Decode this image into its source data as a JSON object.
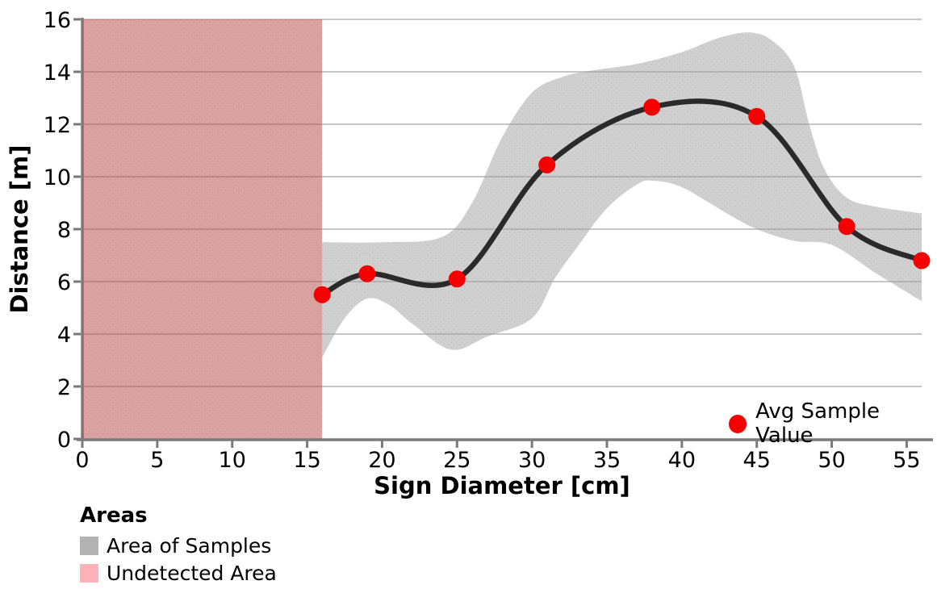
{
  "chart_data": {
    "type": "line",
    "xlabel": "Sign Diameter [cm]",
    "ylabel": "Distance [m]",
    "xlim": [
      0,
      56
    ],
    "ylim": [
      0,
      16
    ],
    "xticks": [
      0,
      5,
      10,
      15,
      20,
      25,
      30,
      35,
      40,
      45,
      50,
      55
    ],
    "yticks": [
      0,
      2,
      4,
      6,
      8,
      10,
      12,
      14,
      16
    ],
    "grid": "horizontal",
    "series": [
      {
        "name": "Avg Sample Value",
        "x": [
          16,
          19,
          25,
          31,
          38,
          45,
          51,
          56
        ],
        "y": [
          5.5,
          6.3,
          6.1,
          10.45,
          12.65,
          12.3,
          8.1,
          6.8
        ]
      }
    ],
    "band": {
      "name": "Area of Samples",
      "upper": [
        [
          16,
          7.5
        ],
        [
          20,
          7.5
        ],
        [
          24,
          7.7
        ],
        [
          26,
          9.0
        ],
        [
          28,
          11.5
        ],
        [
          30,
          13.2
        ],
        [
          32,
          13.8
        ],
        [
          34,
          14.05
        ],
        [
          37,
          14.3
        ],
        [
          40,
          14.75
        ],
        [
          42.5,
          15.3
        ],
        [
          44.5,
          15.5
        ],
        [
          46,
          15.2
        ],
        [
          47.5,
          14.2
        ],
        [
          48.5,
          12.0
        ],
        [
          49.5,
          10.3
        ],
        [
          51,
          9.2
        ],
        [
          53,
          8.85
        ],
        [
          56,
          8.6
        ]
      ],
      "lower": [
        [
          16,
          3.1
        ],
        [
          17.5,
          4.6
        ],
        [
          19,
          5.35
        ],
        [
          20.5,
          5.1
        ],
        [
          22,
          4.4
        ],
        [
          24.6,
          3.4
        ],
        [
          27,
          3.9
        ],
        [
          30,
          4.6
        ],
        [
          31.5,
          6.1
        ],
        [
          33,
          7.3
        ],
        [
          35,
          8.8
        ],
        [
          37,
          9.7
        ],
        [
          38,
          9.85
        ],
        [
          40,
          9.6
        ],
        [
          43,
          8.6
        ],
        [
          45,
          8.0
        ],
        [
          47.5,
          7.55
        ],
        [
          50,
          7.4
        ],
        [
          53,
          6.3
        ],
        [
          56,
          5.25
        ]
      ]
    },
    "undetected": {
      "name": "Undetected Area",
      "x_range": [
        0,
        16
      ]
    },
    "legend_inplot": {
      "label": "Avg Sample Value",
      "marker_color": "#f50000"
    },
    "legend_bottom": {
      "title": "Areas",
      "items": [
        {
          "label": "Area of Samples",
          "color": "#b3b3b3"
        },
        {
          "label": "Undetected Area",
          "color": "#ffb2b7"
        }
      ]
    },
    "colors": {
      "line": "#2a2a2a",
      "marker": "#f50000",
      "band_fill": "rgba(162,162,162,0.5)",
      "undetected_fill": "rgba(190,85,85,0.55)",
      "grid": "#c6c6c6",
      "spine": "#7a7a7a",
      "tick_text": "#000000"
    }
  }
}
